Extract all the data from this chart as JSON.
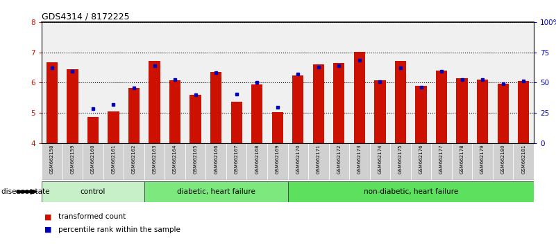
{
  "title": "GDS4314 / 8172225",
  "samples": [
    "GSM662158",
    "GSM662159",
    "GSM662160",
    "GSM662161",
    "GSM662162",
    "GSM662163",
    "GSM662164",
    "GSM662165",
    "GSM662166",
    "GSM662167",
    "GSM662168",
    "GSM662169",
    "GSM662170",
    "GSM662171",
    "GSM662172",
    "GSM662173",
    "GSM662174",
    "GSM662175",
    "GSM662176",
    "GSM662177",
    "GSM662178",
    "GSM662179",
    "GSM662180",
    "GSM662181"
  ],
  "red_values": [
    6.67,
    6.45,
    4.87,
    5.05,
    5.82,
    6.72,
    6.08,
    5.6,
    6.35,
    5.38,
    5.95,
    5.03,
    6.25,
    6.6,
    6.65,
    7.02,
    6.07,
    6.72,
    5.9,
    6.4,
    6.15,
    6.1,
    5.97,
    6.05
  ],
  "blue_values": [
    6.5,
    6.38,
    5.15,
    5.27,
    5.82,
    6.55,
    6.1,
    5.6,
    6.32,
    5.62,
    6.0,
    5.18,
    6.28,
    6.52,
    6.55,
    6.75,
    6.03,
    6.48,
    5.85,
    6.37,
    6.1,
    6.1,
    5.97,
    6.05
  ],
  "ylim_left": [
    4,
    8
  ],
  "ylim_right": [
    0,
    100
  ],
  "yticks_left": [
    4,
    5,
    6,
    7,
    8
  ],
  "yticks_right": [
    0,
    25,
    50,
    75,
    100
  ],
  "yticklabels_right": [
    "0",
    "25",
    "50",
    "75",
    "100%"
  ],
  "bar_color": "#cc1100",
  "dot_color": "#0000bb",
  "group_info": [
    {
      "label": "control",
      "start": 0,
      "end": 5,
      "color": "#c8f0c8"
    },
    {
      "label": "diabetic, heart failure",
      "start": 5,
      "end": 12,
      "color": "#7de87d"
    },
    {
      "label": "non-diabetic, heart failure",
      "start": 12,
      "end": 24,
      "color": "#5de05d"
    }
  ],
  "plot_bg": "#f0f0f0",
  "label_bg": "#d0d0d0",
  "ylabel_left_color": "#cc1100",
  "ylabel_right_color": "#0000bb"
}
